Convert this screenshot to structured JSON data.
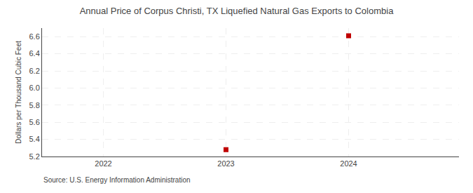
{
  "chart_data": {
    "type": "scatter",
    "title": "Annual Price of Corpus Christi, TX Liquefied Natural Gas Exports to Colombia",
    "ylabel": "Dollars per Thousand Cubic Feet",
    "annotations": [
      "Source: U.S. Energy Information Administration"
    ],
    "x": [
      2023,
      2024
    ],
    "values": [
      5.28,
      6.61
    ],
    "color": "#c00000",
    "marker": "square",
    "xlim": [
      2021.5,
      2024.9
    ],
    "xticks": [
      2022,
      2023,
      2024
    ],
    "ylim": [
      5.2,
      6.7
    ],
    "yticks": [
      5.2,
      5.4,
      5.6,
      5.8,
      {
        "value": 6.0,
        "label": "6.0"
      },
      6.2,
      6.4,
      6.6
    ],
    "grid": true
  }
}
